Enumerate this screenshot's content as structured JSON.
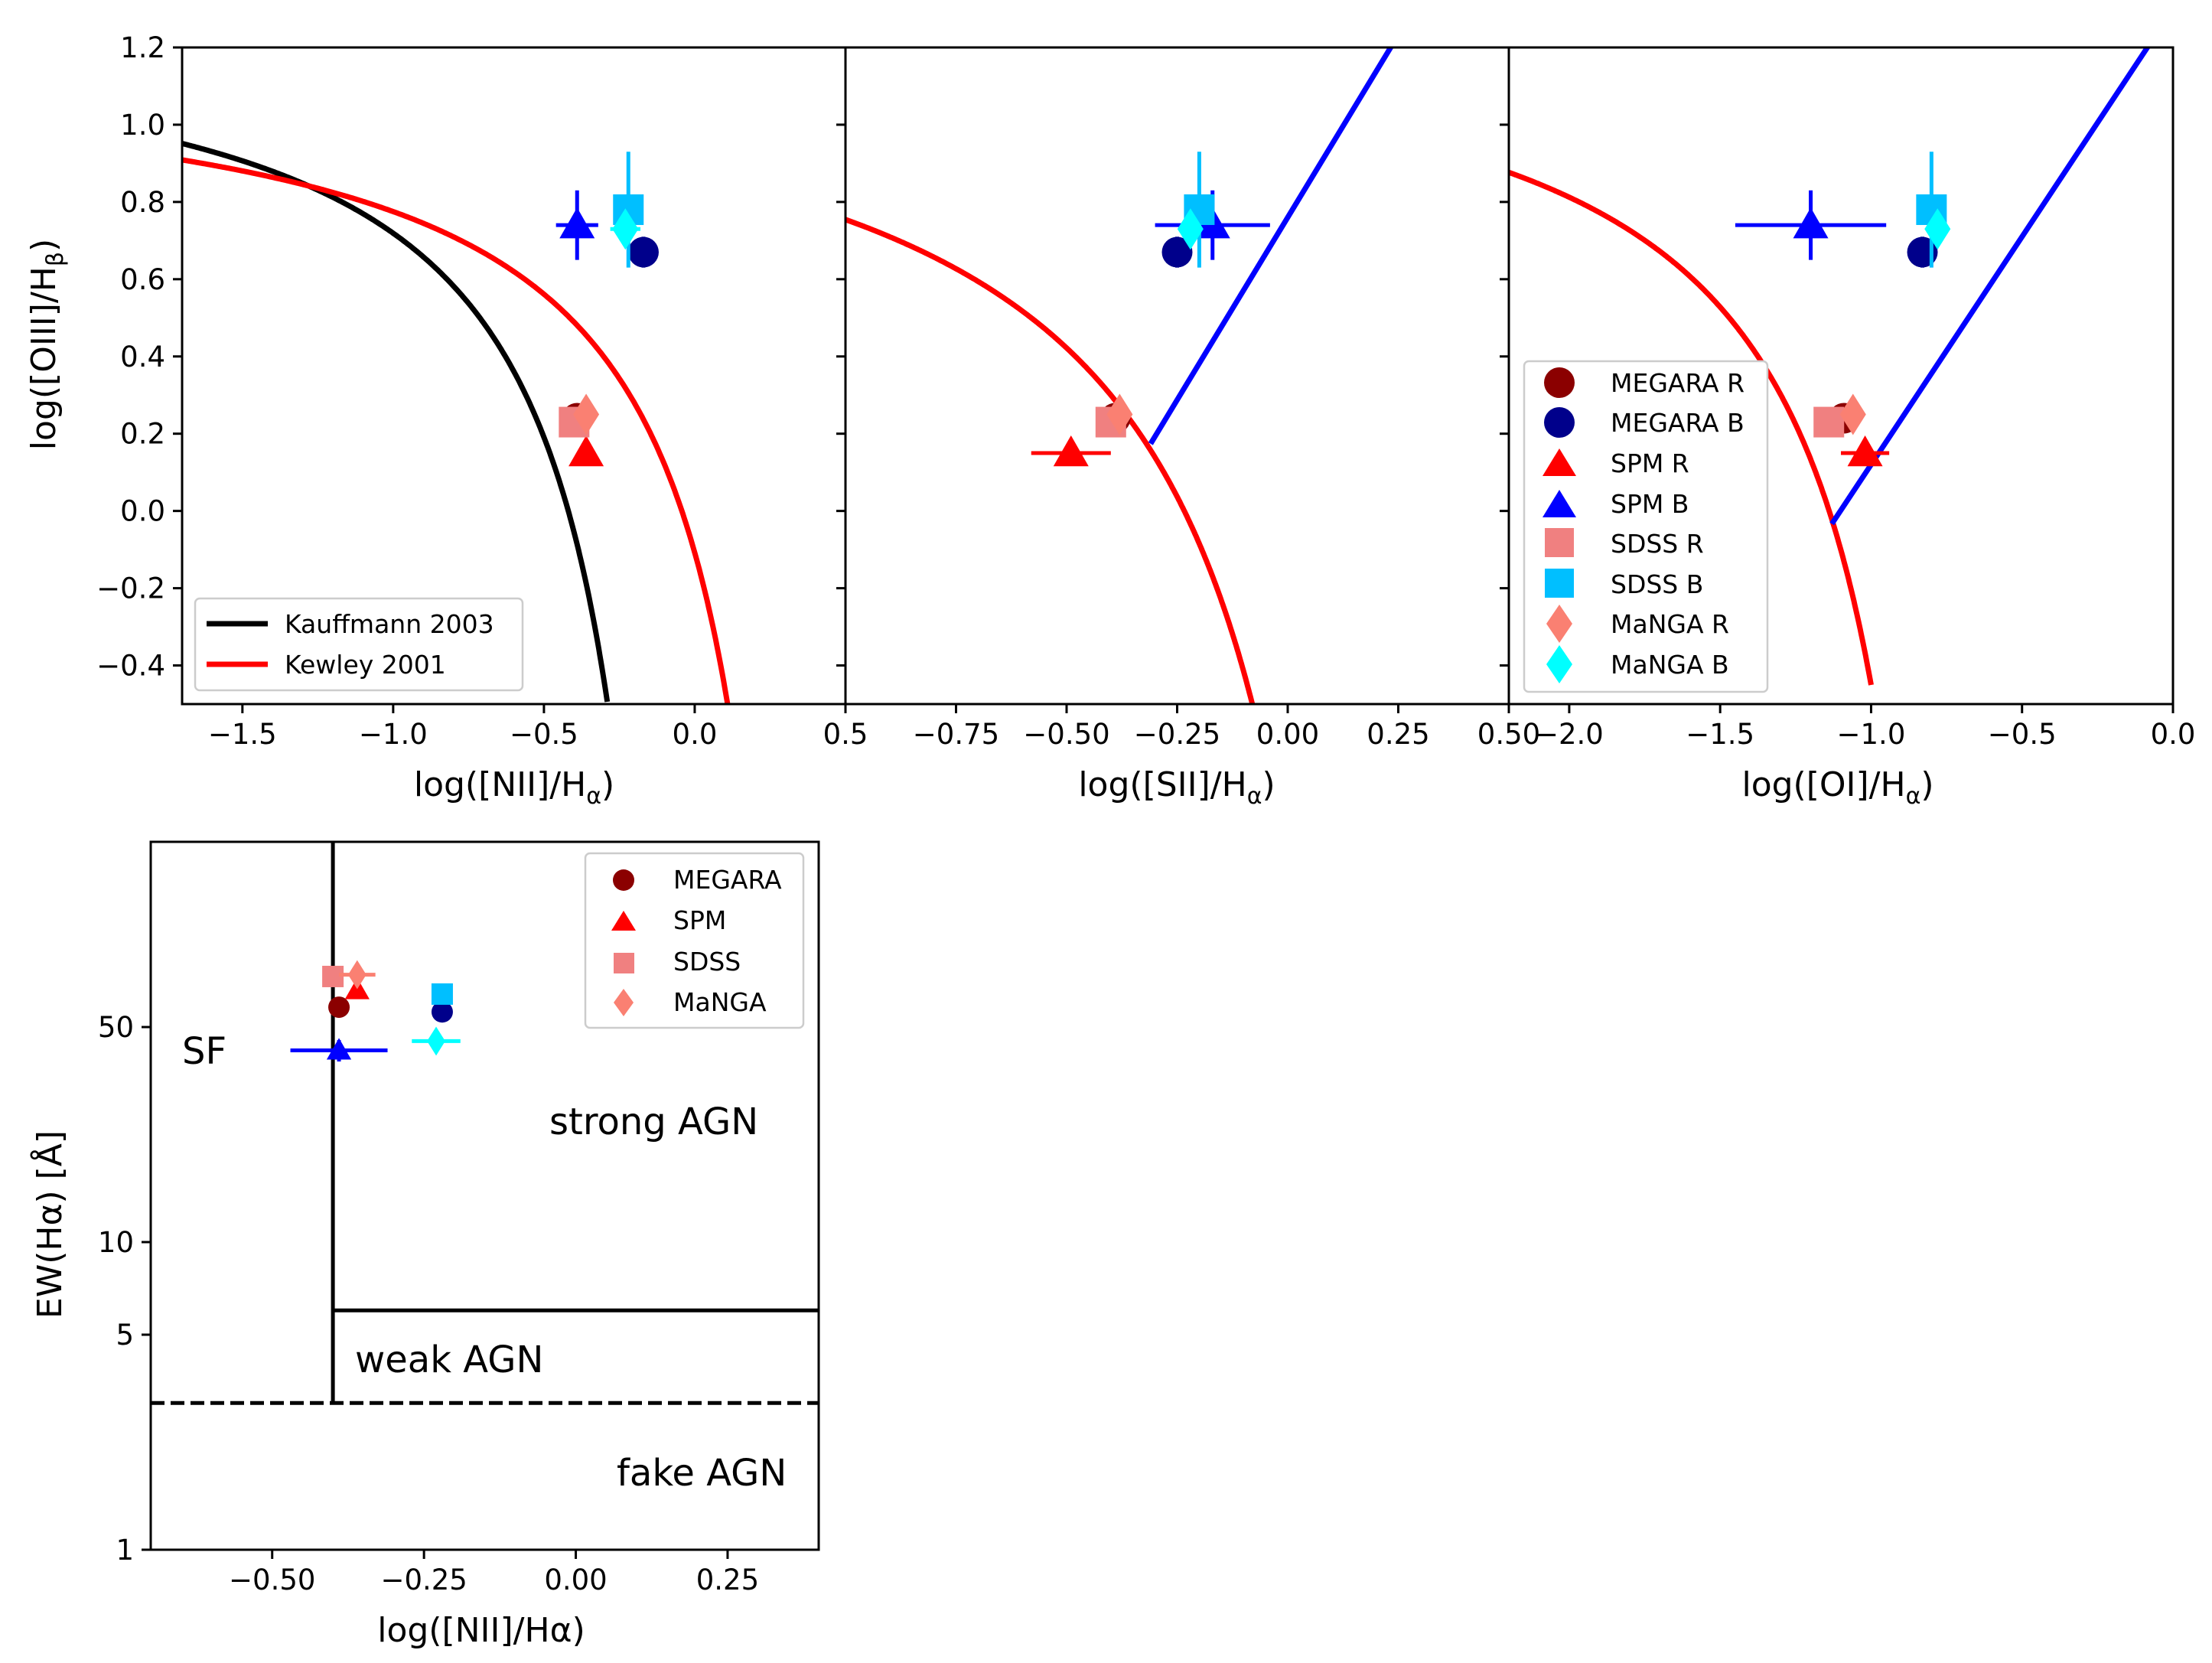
{
  "colors": {
    "megara_r": "#8b0000",
    "megara_b": "#00008b",
    "spm_r": "#ff0000",
    "spm_b": "#0000ff",
    "sdss_r": "#f08080",
    "sdss_b": "#00bfff",
    "manga_r": "#fa8072",
    "manga_b": "#00ffff",
    "kauffmann": "#000000",
    "kewley": "#ff0000",
    "seyfert_liner": "#0000ff"
  },
  "chart_data": [
    {
      "type": "scatter",
      "id": "nii",
      "xlabel": "log([NII]/H",
      "xlabel_sub": "α",
      "ylabel": "log([OIII]/H",
      "ylabel_sub": "β",
      "xlim": [
        -1.7,
        0.5
      ],
      "ylim": [
        -0.5,
        1.2
      ],
      "xticks": [
        "−1.5",
        "−1.0",
        "−0.5",
        "0.0",
        "0.5"
      ],
      "xtick_values": [
        -1.5,
        -1.0,
        -0.5,
        0.0,
        0.5
      ],
      "yticks": [
        "−0.4",
        "−0.2",
        "0.0",
        "0.2",
        "0.4",
        "0.6",
        "0.8",
        "1.0",
        "1.2"
      ],
      "ytick_values": [
        -0.4,
        -0.2,
        0.0,
        0.2,
        0.4,
        0.6,
        0.8,
        1.0,
        1.2
      ],
      "curves": [
        {
          "name": "Kauffmann 2003",
          "form": "0.61/(x-0.05)+1.3",
          "xmax": -0.29,
          "color": "#000000"
        },
        {
          "name": "Kewley 2001",
          "form": "0.61/(x-0.47)+1.19",
          "xmax": 0.11,
          "color": "#ff0000"
        }
      ],
      "points": [
        {
          "name": "MEGARA R",
          "marker": "circle",
          "color": "#8b0000",
          "x": -0.39,
          "y": 0.24,
          "xerr": 0.0,
          "yerr": 0.02
        },
        {
          "name": "MEGARA B",
          "marker": "circle",
          "color": "#00008b",
          "x": -0.17,
          "y": 0.67,
          "xerr": 0.02,
          "yerr": 0.04
        },
        {
          "name": "SPM R",
          "marker": "triangle",
          "color": "#ff0000",
          "x": -0.36,
          "y": 0.15,
          "xerr": 0.0,
          "yerr": 0.0
        },
        {
          "name": "SPM B",
          "marker": "triangle",
          "color": "#0000ff",
          "x": -0.39,
          "y": 0.74,
          "xerr": 0.07,
          "yerr": 0.09
        },
        {
          "name": "SDSS R",
          "marker": "square",
          "color": "#f08080",
          "x": -0.4,
          "y": 0.23,
          "xerr": 0.0,
          "yerr": 0.0
        },
        {
          "name": "SDSS B",
          "marker": "square",
          "color": "#00bfff",
          "x": -0.22,
          "y": 0.78,
          "xerr": 0.0,
          "yerr": 0.15
        },
        {
          "name": "MaNGA R",
          "marker": "diamond",
          "color": "#fa8072",
          "x": -0.36,
          "y": 0.25,
          "xerr": 0.0,
          "yerr": 0.0
        },
        {
          "name": "MaNGA B",
          "marker": "diamond",
          "color": "#00ffff",
          "x": -0.23,
          "y": 0.73,
          "xerr": 0.05,
          "yerr": 0.0
        }
      ],
      "legend": {
        "position": "lower-left",
        "entries": [
          "Kauffmann 2003",
          "Kewley 2001"
        ]
      }
    },
    {
      "type": "scatter",
      "id": "sii",
      "xlabel": "log([SII]/H",
      "xlabel_sub": "α",
      "xlim": [
        -1.0,
        0.5
      ],
      "ylim": [
        -0.5,
        1.2
      ],
      "xticks": [
        "−0.75",
        "−0.50",
        "−0.25",
        "0.00",
        "0.25",
        "0.50"
      ],
      "xtick_values": [
        -0.75,
        -0.5,
        -0.25,
        0.0,
        0.25,
        0.5
      ],
      "curves": [
        {
          "name": "Kewley 2001",
          "form": "0.72/(x-0.32)+1.30",
          "xmax": -0.07,
          "color": "#ff0000"
        }
      ],
      "lines": [
        {
          "name": "Seyfert-LINER",
          "slope": 1.89,
          "intercept": 0.76,
          "x0": -0.31,
          "color": "#0000ff"
        }
      ],
      "points": [
        {
          "name": "MEGARA R",
          "marker": "circle",
          "color": "#8b0000",
          "x": -0.39,
          "y": 0.24,
          "xerr": 0.0,
          "yerr": 0.02
        },
        {
          "name": "MEGARA B",
          "marker": "circle",
          "color": "#00008b",
          "x": -0.25,
          "y": 0.67,
          "xerr": 0.02,
          "yerr": 0.04
        },
        {
          "name": "SPM R",
          "marker": "triangle",
          "color": "#ff0000",
          "x": -0.49,
          "y": 0.15,
          "xerr": 0.09,
          "yerr": 0.0
        },
        {
          "name": "SPM B",
          "marker": "triangle",
          "color": "#0000ff",
          "x": -0.17,
          "y": 0.74,
          "xerr": 0.13,
          "yerr": 0.09
        },
        {
          "name": "SDSS R",
          "marker": "square",
          "color": "#f08080",
          "x": -0.4,
          "y": 0.23,
          "xerr": 0.0,
          "yerr": 0.0
        },
        {
          "name": "SDSS B",
          "marker": "square",
          "color": "#00bfff",
          "x": -0.2,
          "y": 0.78,
          "xerr": 0.0,
          "yerr": 0.15
        },
        {
          "name": "MaNGA R",
          "marker": "diamond",
          "color": "#fa8072",
          "x": -0.38,
          "y": 0.25,
          "xerr": 0.0,
          "yerr": 0.0
        },
        {
          "name": "MaNGA B",
          "marker": "diamond",
          "color": "#00ffff",
          "x": -0.22,
          "y": 0.73,
          "xerr": 0.02,
          "yerr": 0.0
        }
      ]
    },
    {
      "type": "scatter",
      "id": "oi",
      "xlabel": "log([OI]/H",
      "xlabel_sub": "α",
      "xlim": [
        -2.2,
        0.0
      ],
      "ylim": [
        -0.5,
        1.2
      ],
      "xticks": [
        "−2.0",
        "−1.5",
        "−1.0",
        "−0.5",
        "0.0"
      ],
      "xtick_values": [
        -2.0,
        -1.5,
        -1.0,
        -0.5,
        0.0
      ],
      "curves": [
        {
          "name": "Kewley 2001",
          "form": "0.73/(x+0.59)+1.33",
          "xmax": -1.0,
          "color": "#ff0000"
        }
      ],
      "lines": [
        {
          "name": "Seyfert-LINER",
          "slope": 1.18,
          "intercept": 1.3,
          "x0": -1.13,
          "color": "#0000ff"
        }
      ],
      "points": [
        {
          "name": "MEGARA R",
          "marker": "circle",
          "color": "#8b0000",
          "x": -1.09,
          "y": 0.24,
          "xerr": 0.0,
          "yerr": 0.02
        },
        {
          "name": "MEGARA B",
          "marker": "circle",
          "color": "#00008b",
          "x": -0.83,
          "y": 0.67,
          "xerr": 0.02,
          "yerr": 0.04
        },
        {
          "name": "SPM R",
          "marker": "triangle",
          "color": "#ff0000",
          "x": -1.02,
          "y": 0.15,
          "xerr": 0.08,
          "yerr": 0.0
        },
        {
          "name": "SPM B",
          "marker": "triangle",
          "color": "#0000ff",
          "x": -1.2,
          "y": 0.74,
          "xerr": 0.25,
          "yerr": 0.09
        },
        {
          "name": "SDSS R",
          "marker": "square",
          "color": "#f08080",
          "x": -1.14,
          "y": 0.23,
          "xerr": 0.0,
          "yerr": 0.0
        },
        {
          "name": "SDSS B",
          "marker": "square",
          "color": "#00bfff",
          "x": -0.8,
          "y": 0.78,
          "xerr": 0.0,
          "yerr": 0.15
        },
        {
          "name": "MaNGA R",
          "marker": "diamond",
          "color": "#fa8072",
          "x": -1.06,
          "y": 0.25,
          "xerr": 0.0,
          "yerr": 0.0
        },
        {
          "name": "MaNGA B",
          "marker": "diamond",
          "color": "#00ffff",
          "x": -0.78,
          "y": 0.73,
          "xerr": 0.02,
          "yerr": 0.0
        }
      ],
      "legend": {
        "position": "center-left",
        "entries": [
          "MEGARA R",
          "MEGARA B",
          "SPM R",
          "SPM B",
          "SDSS R",
          "SDSS B",
          "MaNGA R",
          "MaNGA B"
        ]
      }
    },
    {
      "type": "scatter",
      "id": "whan",
      "xlabel": "log([NII]/Hα)",
      "ylabel": "EW(Hα) [Å]",
      "yscale": "log",
      "xlim": [
        -0.7,
        0.4
      ],
      "ylim": [
        1,
        200
      ],
      "xticks": [
        "−0.50",
        "−0.25",
        "0.00",
        "0.25"
      ],
      "xtick_values": [
        -0.5,
        -0.25,
        0.0,
        0.25
      ],
      "yticks": [
        "1",
        "5",
        "10",
        "50"
      ],
      "ytick_values": [
        1,
        5,
        10,
        50
      ],
      "boundaries": [
        {
          "name": "SF/AGN",
          "x": -0.4,
          "ymin": 3,
          "ymax": 200,
          "style": "solid"
        },
        {
          "name": "strong/weak AGN",
          "y": 6,
          "xmin": -0.4,
          "xmax": 0.4,
          "style": "solid"
        },
        {
          "name": "fake AGN",
          "y": 3,
          "xmin": -0.7,
          "xmax": 0.4,
          "style": "dashed"
        }
      ],
      "regions": [
        "SF",
        "strong AGN",
        "weak AGN",
        "fake AGN"
      ],
      "points": [
        {
          "name": "MEGARA R",
          "marker": "circle",
          "color": "#8b0000",
          "x": -0.39,
          "y": 58,
          "xerr": 0.0,
          "yerr_frac": 0.0
        },
        {
          "name": "MEGARA B",
          "marker": "circle",
          "color": "#00008b",
          "x": -0.22,
          "y": 56,
          "xerr": 0.0,
          "yerr_frac": 0.0
        },
        {
          "name": "SPM R",
          "marker": "triangle",
          "color": "#ff0000",
          "x": -0.36,
          "y": 66,
          "xerr": 0.0,
          "yerr_frac": 0.0
        },
        {
          "name": "SPM B",
          "marker": "triangle",
          "color": "#0000ff",
          "x": -0.39,
          "y": 42,
          "xerr": 0.08,
          "yerr_frac": 0.08
        },
        {
          "name": "SDSS R",
          "marker": "square",
          "color": "#f08080",
          "x": -0.4,
          "y": 73,
          "xerr": 0.0,
          "yerr_frac": 0.0
        },
        {
          "name": "SDSS B",
          "marker": "square",
          "color": "#00bfff",
          "x": -0.22,
          "y": 64,
          "xerr": 0.0,
          "yerr_frac": 0.0
        },
        {
          "name": "MaNGA R",
          "marker": "diamond",
          "color": "#fa8072",
          "x": -0.36,
          "y": 74,
          "xerr": 0.03,
          "yerr_frac": 0.0
        },
        {
          "name": "MaNGA B",
          "marker": "diamond",
          "color": "#00ffff",
          "x": -0.23,
          "y": 45,
          "xerr": 0.04,
          "yerr_frac": 0.0
        }
      ],
      "legend": {
        "position": "upper-right",
        "entries": [
          "MEGARA",
          "SPM",
          "SDSS",
          "MaNGA"
        ]
      }
    }
  ],
  "labels": {
    "kauffmann": "Kauffmann 2003",
    "kewley": "Kewley 2001",
    "megara_r": "MEGARA R",
    "megara_b": "MEGARA B",
    "spm_r": "SPM R",
    "spm_b": "SPM B",
    "sdss_r": "SDSS R",
    "sdss_b": "SDSS B",
    "manga_r": "MaNGA R",
    "manga_b": "MaNGA B",
    "megara": "MEGARA",
    "spm": "SPM",
    "sdss": "SDSS",
    "manga": "MaNGA",
    "sf": "SF",
    "strong_agn": "strong AGN",
    "weak_agn": "weak AGN",
    "fake_agn": "fake AGN",
    "nii_xlabel": "log([NII]/H",
    "sii_xlabel": "log([SII]/H",
    "oi_xlabel": "log([OI]/H",
    "bpt_ylabel": "log([OIII]/H",
    "sub_alpha": "α",
    "sub_beta": "β",
    "whan_xlabel": "log([NII]/Hα)",
    "whan_ylabel": "EW(Hα) [Å]"
  }
}
